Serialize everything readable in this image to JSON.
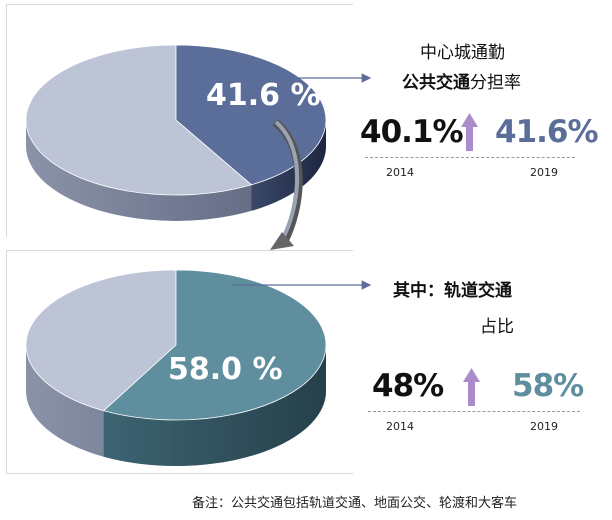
{
  "chart_data": [
    {
      "type": "pie",
      "title": "中心城通勤公共交通分担率",
      "slices": [
        {
          "label": "公共交通",
          "value": 41.6,
          "color": "#5b6e9a"
        },
        {
          "label": "",
          "value": 58.4,
          "color": "#bcc4d6"
        }
      ],
      "data_label": "41.6 %",
      "comparison": {
        "from_value": "40.1%",
        "from_year": "2014",
        "to_value": "41.6%",
        "to_year": "2019"
      }
    },
    {
      "type": "pie",
      "title": "其中：轨道交通占比",
      "slices": [
        {
          "label": "轨道交通",
          "value": 58.0,
          "color": "#5f8e9e"
        },
        {
          "label": "",
          "value": 42.0,
          "color": "#bcc4d6"
        }
      ],
      "data_label": "58.0 %",
      "comparison": {
        "from_value": "48%",
        "from_year": "2014",
        "to_value": "58%",
        "to_year": "2019"
      }
    }
  ],
  "text": {
    "top_title_line1": "中心城通勤",
    "top_title_bold": "公共交通",
    "top_title_rest": "分担率",
    "bottom_title_line1": "其中：轨道交通",
    "bottom_title_line2": "占比",
    "note": "备注：公共交通包括轨道交通、地面公交、轮渡和大客车"
  },
  "colors": {
    "top_value": "#5b6e9a",
    "bottom_value": "#5f8e9e",
    "arrow_up": "#a98cc9",
    "pie_base": "#bcc4d6"
  }
}
